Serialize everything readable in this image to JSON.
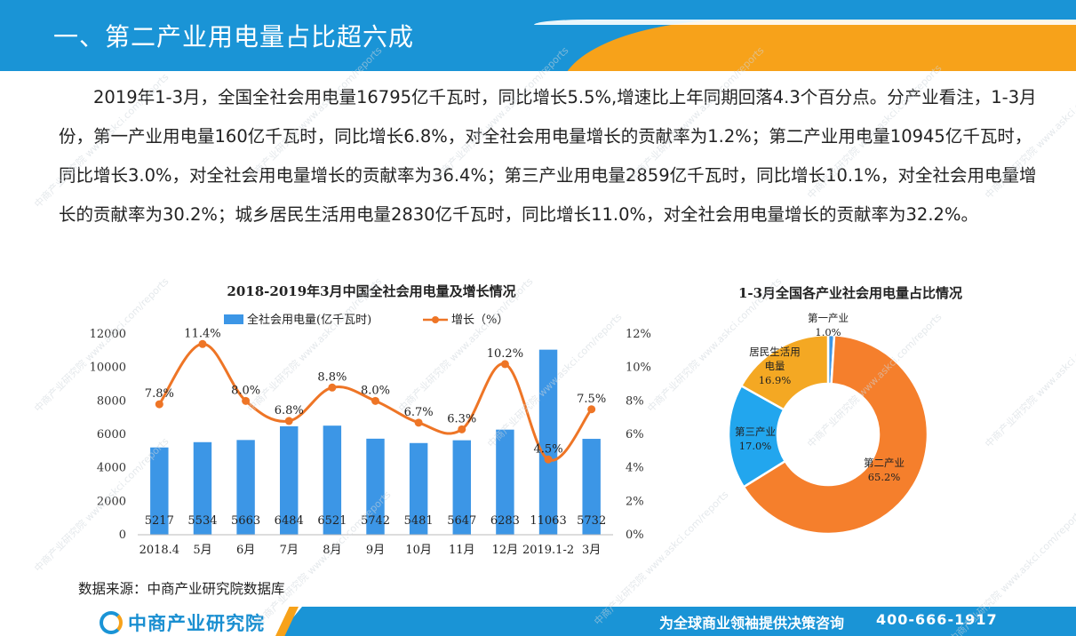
{
  "header": {
    "title": "一、第二产业用电量占比超六成"
  },
  "intro": {
    "paragraph": "2019年1-3月，全国全社会用电量16795亿千瓦时，同比增长5.5%,增速比上年同期回落4.3个百分点。分产业看注，1-3月份，第一产业用电量160亿千瓦时，同比增长6.8%，对全社会用电量增长的贡献率为1.2%；第二产业用电量10945亿千瓦时，同比增长3.0%，对全社会用电量增长的贡献率为36.4%；第三产业用电量2859亿千瓦时，同比增长10.1%，对全社会用电量增长的贡献率为30.2%；城乡居民生活用电量2830亿千瓦时，同比增长11.0%，对全社会用电量增长的贡献率为32.2%。"
  },
  "source": "数据来源：中商产业研究院数据库",
  "footer": {
    "logo_text": "中商产业研究院",
    "slogan": "为全球商业领袖提供决策咨询",
    "phone": "400-666-1917",
    "brand_blue": "#1a94d6",
    "brand_orange": "#f7a21a"
  },
  "watermark": "中商产业研究院 www.askci.com/reports",
  "chart_data": [
    {
      "type": "bar",
      "title": "2018-2019年3月中国全社会用电量及增长情况",
      "categories": [
        "2018.4",
        "5月",
        "6月",
        "7月",
        "8月",
        "9月",
        "10月",
        "11月",
        "12月",
        "2019.1-2",
        "3月"
      ],
      "series": [
        {
          "name": "全社会用电量(亿千瓦时)",
          "kind": "bar",
          "axis": "left",
          "color": "#3c96e6",
          "values": [
            5217,
            5534,
            5663,
            6484,
            6521,
            5742,
            5481,
            5647,
            6283,
            11063,
            5732
          ]
        },
        {
          "name": "增长（%）",
          "kind": "line",
          "axis": "right",
          "color": "#ee7526",
          "values": [
            7.8,
            11.4,
            8.0,
            6.8,
            8.8,
            8.0,
            6.7,
            6.3,
            10.2,
            4.5,
            7.5
          ],
          "labels": [
            "7.8%",
            "11.4%",
            "8.0%",
            "6.8%",
            "8.8%",
            "8.0%",
            "6.7%",
            "6.3%",
            "10.2%",
            "4.5%",
            "7.5%"
          ]
        }
      ],
      "y_left": {
        "min": 0,
        "max": 12000,
        "ticks": [
          "0",
          "2000",
          "4000",
          "6000",
          "8000",
          "10000",
          "12000"
        ]
      },
      "y_right": {
        "min": 0,
        "max": 12,
        "ticks": [
          "0%",
          "2%",
          "4%",
          "6%",
          "8%",
          "10%",
          "12%"
        ]
      },
      "legend": "top",
      "grid": false
    },
    {
      "type": "pie",
      "title": "1-3月全国各产业社会用电量占比情况",
      "donut": true,
      "slices": [
        {
          "label": "第一产业",
          "value": 1.0,
          "percent": "1.0%",
          "color": "#3c96e6"
        },
        {
          "label": "第二产业",
          "value": 65.2,
          "percent": "65.2%",
          "color": "#f57f2c"
        },
        {
          "label": "第三产业",
          "value": 17.0,
          "percent": "17.0%",
          "color": "#22a6ee"
        },
        {
          "label": "居民生活用电量",
          "label_lines": [
            "居民生活用",
            "电量"
          ],
          "value": 16.9,
          "percent": "16.9%",
          "color": "#f4a823"
        }
      ]
    }
  ]
}
